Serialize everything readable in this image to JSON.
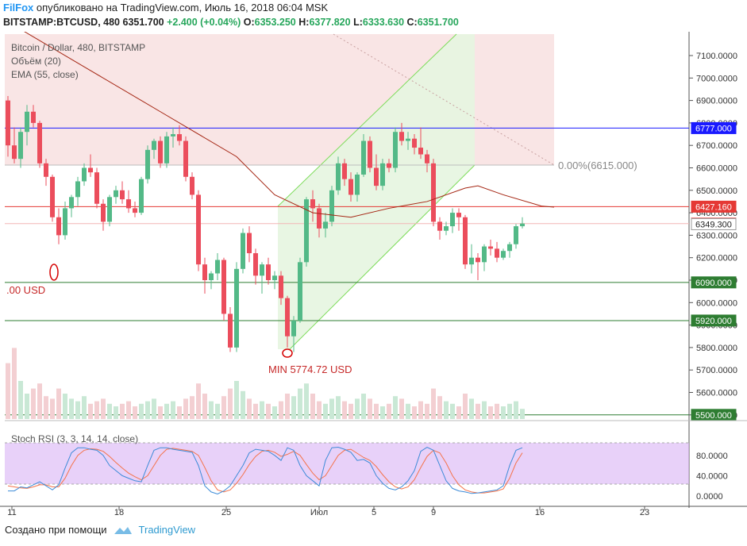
{
  "header": {
    "author": "FilFox",
    "published": "опубликовано на TradingView.com, Июль 16, 2018 06:04 MSK",
    "symbol": "BITSTAMP:BTCUSD, 480",
    "last": "6351.700",
    "change": "+2.400 (+0.04%)",
    "o_label": "O:",
    "o": "6353.250",
    "h_label": "H:",
    "h": "6377.820",
    "l_label": "L:",
    "l": "6333.630",
    "c_label": "C:",
    "c": "6351.700"
  },
  "legend": {
    "title": "Bitcoin / Dollar, 480, BITSTAMP",
    "volume": "Объём (20)",
    "ema": "EMA (55, close)",
    "stoch": "Stoch RSI (3, 3, 14, 14, close)"
  },
  "annotations": {
    "left_price": ".00 USD",
    "min": "MIN 5774.72 USD",
    "fib": "0.00%(6615.000)"
  },
  "price_axis": {
    "ticks": [
      "7100.0000",
      "7000.0000",
      "6900.0000",
      "6800.0000",
      "6700.0000",
      "6600.0000",
      "6500.0000",
      "6400.0000",
      "6300.0000",
      "6200.0000",
      "6100.0000",
      "6000.0000",
      "5900.0000",
      "5800.0000",
      "5700.0000",
      "5600.0000",
      "5500.0000"
    ],
    "badges": [
      {
        "value": 6777.0,
        "label": "6777.000",
        "color": "#1a1aff"
      },
      {
        "value": 6427.16,
        "label": "6427.160",
        "color": "#e53935"
      },
      {
        "value": 6351.7,
        "label": "6351.700",
        "color": "#ef5350"
      },
      {
        "value": 6349.3,
        "label": "6349.300",
        "color": "#ffffff"
      },
      {
        "value": 6090.0,
        "label": "6090.000",
        "color": "#2e7d32"
      },
      {
        "value": 5920.0,
        "label": "5920.000",
        "color": "#2e7d32"
      },
      {
        "value": 5500.0,
        "label": "5500.000",
        "color": "#2e7d32"
      }
    ]
  },
  "stoch_axis": {
    "ticks": [
      "80.0000",
      "40.0000",
      "0.0000"
    ]
  },
  "time_axis": {
    "labels": [
      "11",
      "18",
      "25",
      "Июл",
      "5",
      "9",
      "16",
      "23"
    ]
  },
  "colors": {
    "up": "#53b987",
    "down": "#eb4d5c",
    "ema": "#a52714",
    "stoch_k": "#3d8bd8",
    "stoch_d": "#f4734b",
    "stoch_band": "#d9b3f5"
  },
  "chart_data": {
    "type": "candlestick",
    "timeframe_minutes": 480,
    "ylim": [
      5430,
      7180
    ],
    "ohlc": [
      [
        6900,
        6920,
        6650,
        6700
      ],
      [
        6700,
        6780,
        6620,
        6640
      ],
      [
        6640,
        6780,
        6600,
        6760
      ],
      [
        6760,
        6880,
        6700,
        6850
      ],
      [
        6850,
        6880,
        6780,
        6800
      ],
      [
        6800,
        6810,
        6600,
        6620
      ],
      [
        6620,
        6640,
        6520,
        6560
      ],
      [
        6560,
        6570,
        6360,
        6380
      ],
      [
        6380,
        6420,
        6260,
        6300
      ],
      [
        6300,
        6450,
        6280,
        6420
      ],
      [
        6420,
        6480,
        6380,
        6470
      ],
      [
        6470,
        6560,
        6430,
        6540
      ],
      [
        6540,
        6620,
        6520,
        6600
      ],
      [
        6600,
        6660,
        6560,
        6580
      ],
      [
        6580,
        6600,
        6420,
        6440
      ],
      [
        6440,
        6460,
        6320,
        6360
      ],
      [
        6360,
        6480,
        6340,
        6470
      ],
      [
        6470,
        6520,
        6440,
        6500
      ],
      [
        6500,
        6540,
        6440,
        6460
      ],
      [
        6460,
        6500,
        6400,
        6420
      ],
      [
        6420,
        6450,
        6380,
        6400
      ],
      [
        6400,
        6560,
        6390,
        6550
      ],
      [
        6550,
        6700,
        6530,
        6680
      ],
      [
        6680,
        6730,
        6640,
        6720
      ],
      [
        6720,
        6740,
        6600,
        6620
      ],
      [
        6620,
        6760,
        6600,
        6740
      ],
      [
        6740,
        6780,
        6690,
        6750
      ],
      [
        6750,
        6790,
        6700,
        6720
      ],
      [
        6720,
        6740,
        6540,
        6560
      ],
      [
        6560,
        6580,
        6460,
        6480
      ],
      [
        6480,
        6500,
        6140,
        6170
      ],
      [
        6170,
        6200,
        6040,
        6100
      ],
      [
        6100,
        6140,
        6060,
        6130
      ],
      [
        6130,
        6220,
        6100,
        6190
      ],
      [
        6190,
        6200,
        5920,
        5950
      ],
      [
        5950,
        5980,
        5780,
        5800
      ],
      [
        5800,
        6180,
        5780,
        6150
      ],
      [
        6150,
        6330,
        6130,
        6310
      ],
      [
        6310,
        6340,
        6180,
        6220
      ],
      [
        6220,
        6240,
        6080,
        6120
      ],
      [
        6120,
        6180,
        6040,
        6170
      ],
      [
        6170,
        6200,
        6080,
        6100
      ],
      [
        6100,
        6140,
        6060,
        6120
      ],
      [
        6120,
        6140,
        5990,
        6020
      ],
      [
        6020,
        6030,
        5800,
        5850
      ],
      [
        5850,
        5940,
        5780,
        5920
      ],
      [
        5920,
        6200,
        5910,
        6180
      ],
      [
        6180,
        6470,
        6160,
        6460
      ],
      [
        6460,
        6500,
        6360,
        6420
      ],
      [
        6420,
        6440,
        6290,
        6330
      ],
      [
        6330,
        6400,
        6290,
        6360
      ],
      [
        6360,
        6520,
        6340,
        6500
      ],
      [
        6500,
        6650,
        6480,
        6620
      ],
      [
        6620,
        6640,
        6520,
        6550
      ],
      [
        6550,
        6580,
        6450,
        6480
      ],
      [
        6480,
        6580,
        6450,
        6570
      ],
      [
        6570,
        6750,
        6560,
        6720
      ],
      [
        6720,
        6740,
        6580,
        6600
      ],
      [
        6600,
        6660,
        6500,
        6520
      ],
      [
        6520,
        6640,
        6500,
        6620
      ],
      [
        6620,
        6640,
        6580,
        6600
      ],
      [
        6600,
        6780,
        6580,
        6760
      ],
      [
        6760,
        6800,
        6700,
        6720
      ],
      [
        6720,
        6760,
        6680,
        6730
      ],
      [
        6730,
        6750,
        6660,
        6690
      ],
      [
        6690,
        6780,
        6640,
        6660
      ],
      [
        6660,
        6680,
        6580,
        6620
      ],
      [
        6620,
        6640,
        6340,
        6360
      ],
      [
        6360,
        6380,
        6280,
        6320
      ],
      [
        6320,
        6360,
        6300,
        6340
      ],
      [
        6340,
        6420,
        6310,
        6400
      ],
      [
        6400,
        6420,
        6320,
        6380
      ],
      [
        6380,
        6390,
        6150,
        6170
      ],
      [
        6170,
        6260,
        6130,
        6200
      ],
      [
        6200,
        6220,
        6100,
        6180
      ],
      [
        6180,
        6260,
        6140,
        6250
      ],
      [
        6250,
        6280,
        6210,
        6240
      ],
      [
        6240,
        6270,
        6180,
        6200
      ],
      [
        6200,
        6240,
        6190,
        6230
      ],
      [
        6230,
        6270,
        6200,
        6260
      ],
      [
        6260,
        6350,
        6240,
        6340
      ],
      [
        6340,
        6380,
        6330,
        6352
      ]
    ],
    "ema": [
      [
        0,
        7250
      ],
      [
        12,
        7050
      ],
      [
        24,
        6850
      ],
      [
        36,
        6650
      ],
      [
        42,
        6480
      ],
      [
        48,
        6400
      ],
      [
        54,
        6380
      ],
      [
        60,
        6420
      ],
      [
        66,
        6450
      ],
      [
        72,
        6510
      ],
      [
        74,
        6520
      ],
      [
        78,
        6480
      ],
      [
        84,
        6430
      ],
      [
        86,
        6425
      ]
    ],
    "volume": [
      22,
      28,
      15,
      10,
      12,
      14,
      9,
      8,
      12,
      10,
      8,
      7,
      9,
      6,
      7,
      8,
      6,
      5,
      6,
      7,
      5,
      6,
      7,
      8,
      5,
      6,
      7,
      5,
      8,
      9,
      14,
      10,
      7,
      6,
      9,
      12,
      15,
      11,
      8,
      6,
      7,
      6,
      5,
      7,
      10,
      9,
      12,
      14,
      10,
      7,
      6,
      8,
      9,
      7,
      6,
      8,
      10,
      8,
      6,
      5,
      6,
      9,
      8,
      6,
      5,
      7,
      6,
      12,
      9,
      7,
      6,
      5,
      10,
      8,
      6,
      7,
      5,
      6,
      5,
      6,
      7,
      4
    ],
    "stoch_k": [
      10,
      10,
      18,
      16,
      22,
      28,
      20,
      12,
      22,
      55,
      85,
      95,
      95,
      92,
      90,
      80,
      60,
      50,
      40,
      35,
      30,
      28,
      60,
      90,
      95,
      95,
      92,
      90,
      88,
      86,
      60,
      20,
      8,
      4,
      10,
      20,
      40,
      60,
      85,
      92,
      90,
      88,
      80,
      70,
      95,
      90,
      60,
      40,
      30,
      20,
      70,
      95,
      96,
      92,
      86,
      70,
      72,
      65,
      40,
      25,
      15,
      12,
      18,
      30,
      50,
      88,
      96,
      90,
      60,
      30,
      15,
      10,
      8,
      5,
      6,
      8,
      10,
      12,
      20,
      60,
      90,
      95
    ],
    "stoch_d": [
      20,
      18,
      16,
      15,
      18,
      22,
      22,
      18,
      18,
      35,
      60,
      80,
      90,
      93,
      92,
      88,
      78,
      66,
      55,
      45,
      38,
      32,
      40,
      60,
      80,
      92,
      94,
      92,
      90,
      88,
      80,
      56,
      30,
      12,
      8,
      12,
      25,
      42,
      62,
      78,
      88,
      90,
      86,
      78,
      82,
      88,
      80,
      62,
      45,
      32,
      40,
      60,
      80,
      90,
      92,
      84,
      76,
      70,
      58,
      42,
      28,
      18,
      14,
      18,
      32,
      56,
      78,
      90,
      85,
      65,
      40,
      22,
      12,
      8,
      6,
      6,
      8,
      10,
      14,
      35,
      65,
      85
    ]
  }
}
